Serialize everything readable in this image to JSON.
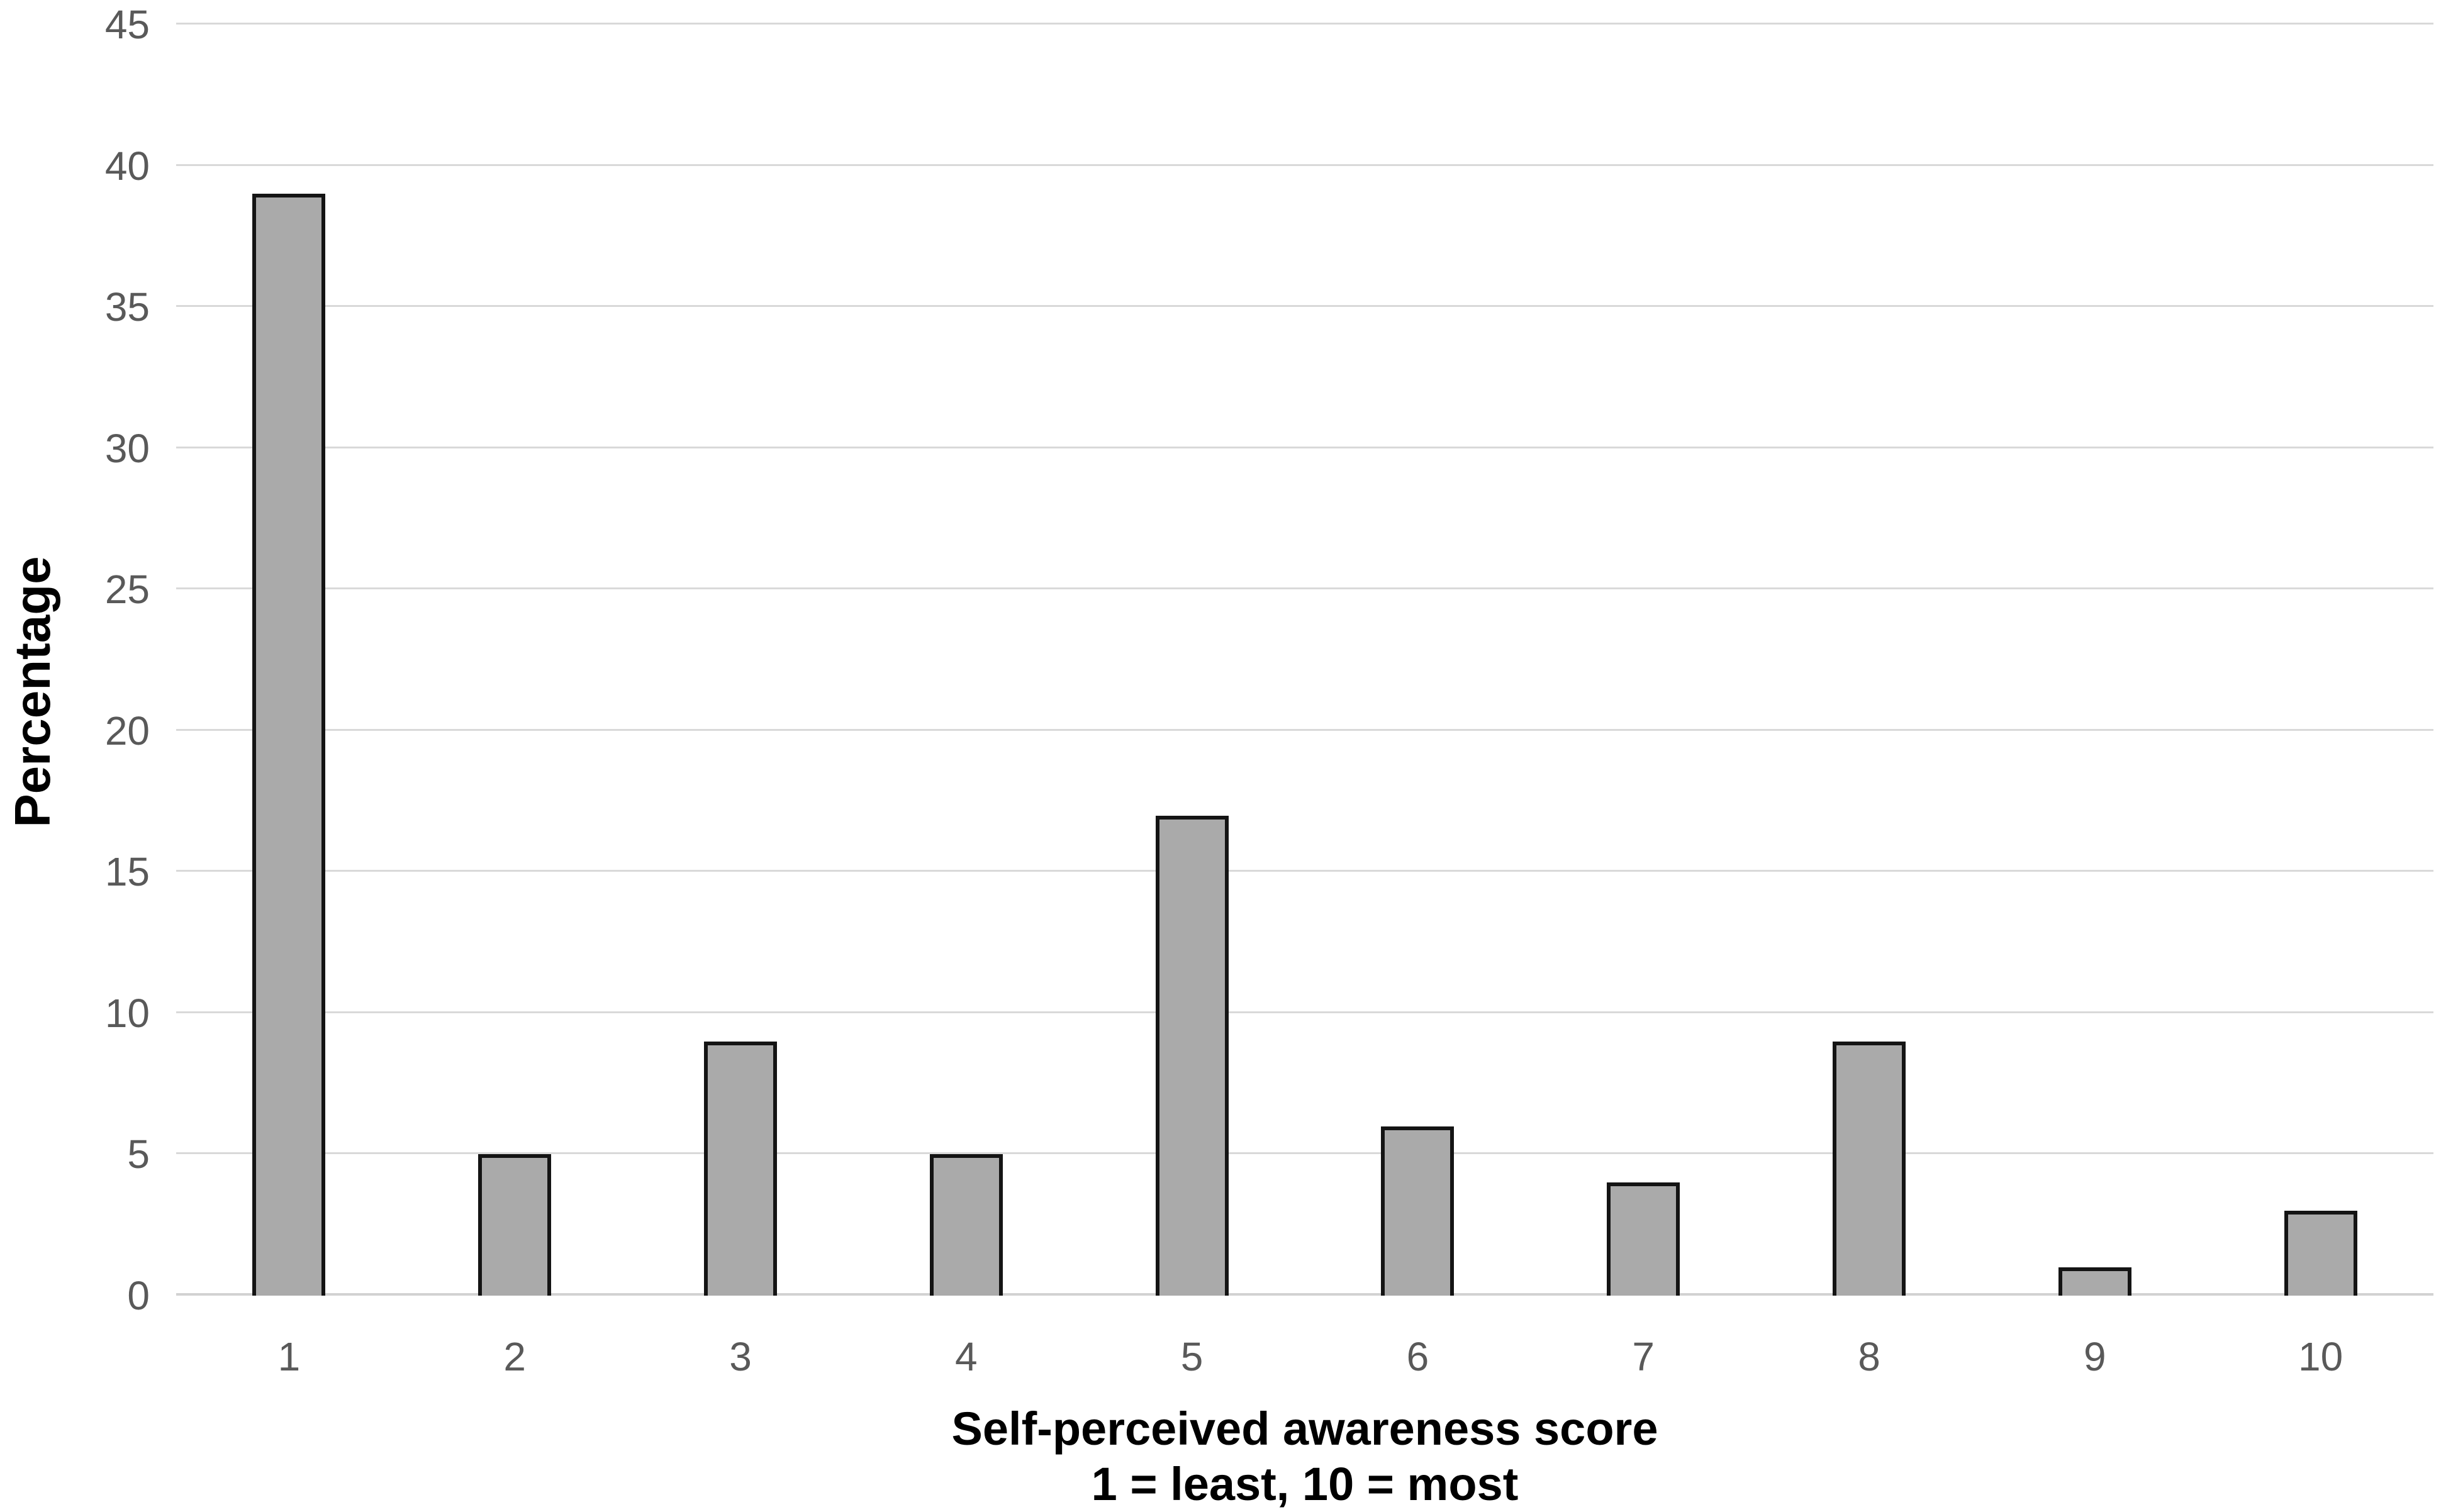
{
  "chart_data": {
    "type": "bar",
    "categories": [
      "1",
      "2",
      "3",
      "4",
      "5",
      "6",
      "7",
      "8",
      "9",
      "10"
    ],
    "values": [
      39,
      5,
      9,
      5,
      17,
      6,
      4,
      9,
      1,
      3
    ],
    "title": "",
    "xlabel_line1": "Self-perceived awareness score",
    "xlabel_line2": "1 = least, 10 = most",
    "ylabel": "Percentage",
    "ylim": [
      0,
      45
    ],
    "yticks": [
      0,
      5,
      10,
      15,
      20,
      25,
      30,
      35,
      40,
      45
    ],
    "grid": "horizontal",
    "legend": "none",
    "colors": {
      "bar_fill": "#aaaaaa",
      "bar_border": "#141414",
      "gridline": "#d9d9d9",
      "baseline": "#d2d2d2",
      "tick_label": "#595959",
      "axis_title": "#000000",
      "background": "#ffffff"
    }
  }
}
